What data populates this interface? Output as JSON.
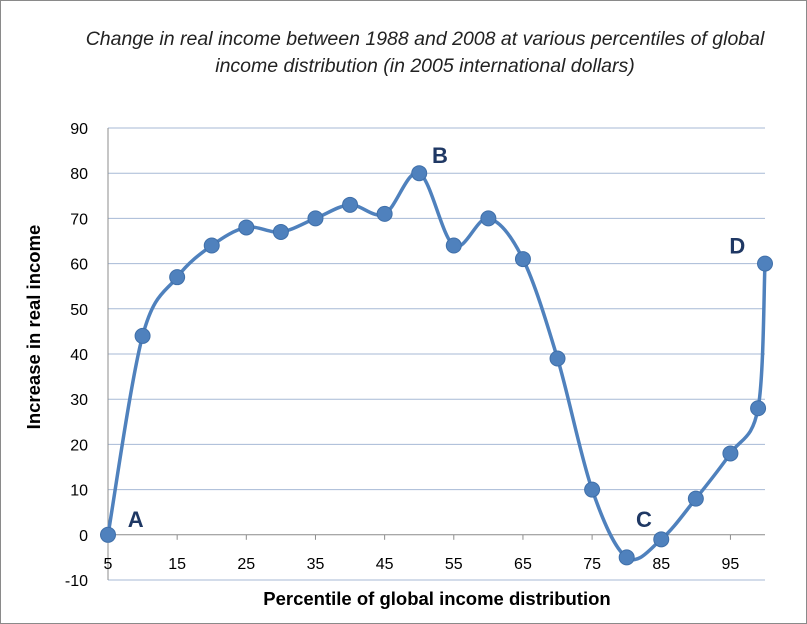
{
  "chart_data": {
    "type": "line",
    "title": "Change in real income between 1988 and 2008 at various percentiles of global income distribution  (in 2005 international dollars)",
    "xlabel": "Percentile of global income distribution",
    "ylabel": "Increase in real income",
    "ylim": [
      -10,
      90
    ],
    "xlim": [
      5,
      100
    ],
    "yticks": [
      90,
      80,
      70,
      60,
      50,
      40,
      30,
      20,
      10,
      0,
      -10
    ],
    "xticks": [
      5,
      15,
      25,
      35,
      45,
      55,
      65,
      75,
      85,
      95
    ],
    "grid": "horizontal",
    "series": [
      {
        "color": "#4f81bd",
        "smooth": true,
        "x": [
          5,
          10,
          15,
          20,
          25,
          30,
          35,
          40,
          45,
          50,
          55,
          60,
          65,
          70,
          75,
          80,
          85,
          90,
          95,
          99,
          100
        ],
        "values": [
          0,
          44,
          57,
          64,
          68,
          67,
          70,
          73,
          71,
          80,
          64,
          70,
          61,
          39,
          10,
          -5,
          -1,
          8,
          18,
          28,
          60
        ]
      }
    ],
    "annotations": [
      {
        "text": "A",
        "x": 9,
        "y": 3.5
      },
      {
        "text": "B",
        "x": 53,
        "y": 84
      },
      {
        "text": "C",
        "x": 82.5,
        "y": 3.5
      },
      {
        "text": "D",
        "x": 96,
        "y": 64
      }
    ]
  }
}
